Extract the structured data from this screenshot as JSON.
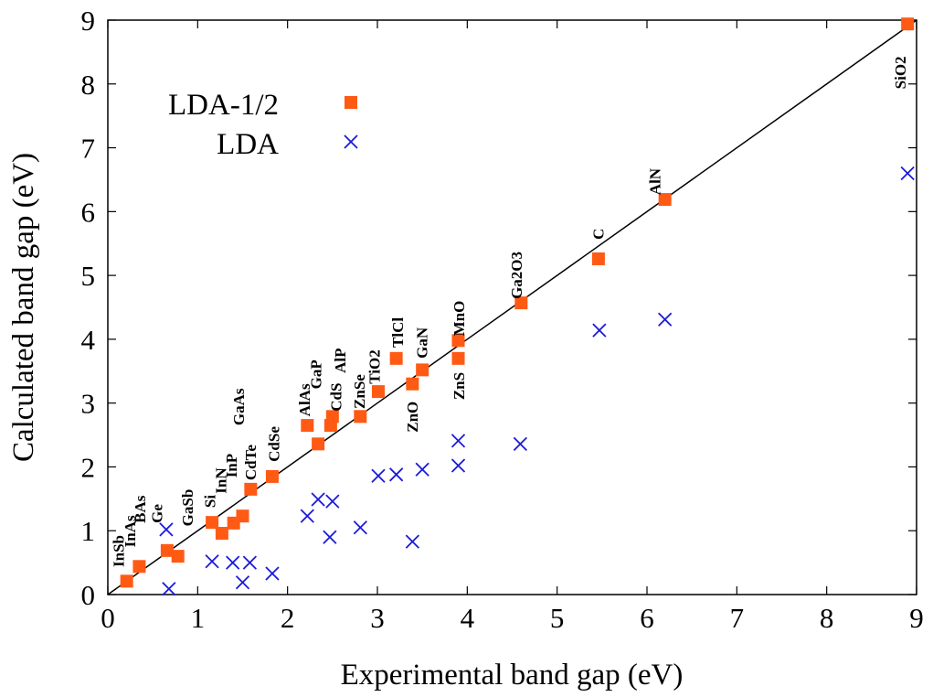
{
  "chart_data": {
    "type": "scatter",
    "title": "",
    "xlabel": "Experimental band gap (eV)",
    "ylabel": "Calculated band gap (eV)",
    "xlim": [
      0,
      9
    ],
    "ylim": [
      0,
      9
    ],
    "xticks": [
      "0",
      "1",
      "2",
      "3",
      "4",
      "5",
      "6",
      "7",
      "8",
      "9"
    ],
    "yticks": [
      "0",
      "1",
      "2",
      "3",
      "4",
      "5",
      "6",
      "7",
      "8",
      "9"
    ],
    "grid": false,
    "legend_placement": "top-left",
    "diagonal_line": {
      "x": [
        0,
        9
      ],
      "y": [
        0,
        9
      ],
      "color": "#000000"
    },
    "series": [
      {
        "name": "LDA-1/2",
        "marker": "square",
        "color": "#ff5a14",
        "points": [
          [
            0.21,
            0.21
          ],
          [
            0.35,
            0.44
          ],
          [
            0.66,
            0.69
          ],
          [
            0.78,
            0.6
          ],
          [
            1.16,
            1.13
          ],
          [
            1.27,
            0.96
          ],
          [
            1.4,
            1.12
          ],
          [
            1.5,
            1.23
          ],
          [
            1.59,
            1.65
          ],
          [
            1.83,
            1.85
          ],
          [
            2.22,
            2.65
          ],
          [
            2.34,
            2.36
          ],
          [
            2.48,
            2.65
          ],
          [
            2.5,
            2.79
          ],
          [
            2.81,
            2.79
          ],
          [
            3.01,
            3.18
          ],
          [
            3.21,
            3.7
          ],
          [
            3.39,
            3.3
          ],
          [
            3.5,
            3.52
          ],
          [
            3.9,
            3.98
          ],
          [
            3.9,
            3.7
          ],
          [
            4.6,
            4.57
          ],
          [
            5.46,
            5.26
          ],
          [
            6.2,
            6.19
          ],
          [
            8.9,
            8.94
          ]
        ]
      },
      {
        "name": "LDA",
        "marker": "cross",
        "color": "#1a1adc",
        "points": [
          [
            0.65,
            1.02
          ],
          [
            0.68,
            0.09
          ],
          [
            1.16,
            0.52
          ],
          [
            1.39,
            0.5
          ],
          [
            1.58,
            0.5
          ],
          [
            1.5,
            0.19
          ],
          [
            1.83,
            0.33
          ],
          [
            2.22,
            1.23
          ],
          [
            2.34,
            1.49
          ],
          [
            2.5,
            1.46
          ],
          [
            2.47,
            0.9
          ],
          [
            2.81,
            1.05
          ],
          [
            3.01,
            1.86
          ],
          [
            3.21,
            1.88
          ],
          [
            3.5,
            1.96
          ],
          [
            3.39,
            0.83
          ],
          [
            3.9,
            2.02
          ],
          [
            3.9,
            2.41
          ],
          [
            4.59,
            2.36
          ],
          [
            5.47,
            4.14
          ],
          [
            6.2,
            4.31
          ],
          [
            8.9,
            6.6
          ]
        ]
      }
    ],
    "annotations": [
      {
        "text": "InSb",
        "x": 0.12,
        "y": 0.43
      },
      {
        "text": "InAs",
        "x": 0.25,
        "y": 0.74
      },
      {
        "text": "BAs",
        "x": 0.36,
        "y": 1.12
      },
      {
        "text": "Ge",
        "x": 0.55,
        "y": 1.12
      },
      {
        "text": "GaSb",
        "x": 0.89,
        "y": 1.07
      },
      {
        "text": "Si",
        "x": 1.14,
        "y": 1.36
      },
      {
        "text": "InN",
        "x": 1.26,
        "y": 1.58
      },
      {
        "text": "InP",
        "x": 1.38,
        "y": 1.83
      },
      {
        "text": "GaAs",
        "x": 1.46,
        "y": 2.65
      },
      {
        "text": "CdTe",
        "x": 1.59,
        "y": 1.79
      },
      {
        "text": "CdSe",
        "x": 1.85,
        "y": 2.08
      },
      {
        "text": "AlAs",
        "x": 2.19,
        "y": 2.79
      },
      {
        "text": "GaP",
        "x": 2.32,
        "y": 3.22
      },
      {
        "text": "CdS",
        "x": 2.54,
        "y": 2.87
      },
      {
        "text": "AlP",
        "x": 2.59,
        "y": 3.47
      },
      {
        "text": "ZnSe",
        "x": 2.8,
        "y": 2.91
      },
      {
        "text": "TiO2",
        "x": 2.97,
        "y": 3.3
      },
      {
        "text": "TlCl",
        "x": 3.23,
        "y": 3.87
      },
      {
        "text": "GaN",
        "x": 3.5,
        "y": 3.7
      },
      {
        "text": "ZnO",
        "x": 3.39,
        "y": 2.54
      },
      {
        "text": "MnO",
        "x": 3.91,
        "y": 4.05
      },
      {
        "text": "ZnS",
        "x": 3.91,
        "y": 3.05
      },
      {
        "text": "Ga2O3",
        "x": 4.55,
        "y": 4.63
      },
      {
        "text": "C",
        "x": 5.46,
        "y": 5.56
      },
      {
        "text": "AlN",
        "x": 6.09,
        "y": 6.26
      },
      {
        "text": "SiO2",
        "x": 8.82,
        "y": 7.92
      }
    ]
  }
}
